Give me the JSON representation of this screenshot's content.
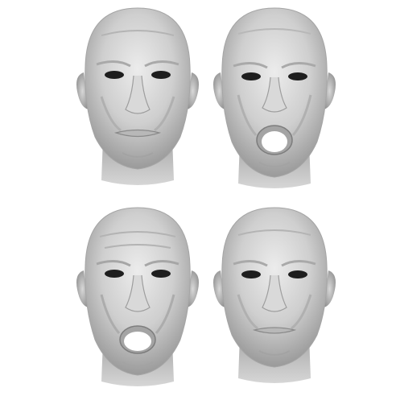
{
  "figure": {
    "layout": "2x2 grid",
    "background": "#ffffff",
    "mesh_color": "#c8c8c8",
    "shadow_color": "#8e8e8e",
    "highlight_color": "#ececec",
    "faces": [
      {
        "id": "face-top-left",
        "expression": "neutral",
        "mouth_open": 0
      },
      {
        "id": "face-top-right",
        "expression": "mouth-open",
        "mouth_open": 1
      },
      {
        "id": "face-bottom-left",
        "expression": "mouth-open",
        "mouth_open": 1
      },
      {
        "id": "face-bottom-right",
        "expression": "neutral",
        "mouth_open": 0
      }
    ]
  }
}
